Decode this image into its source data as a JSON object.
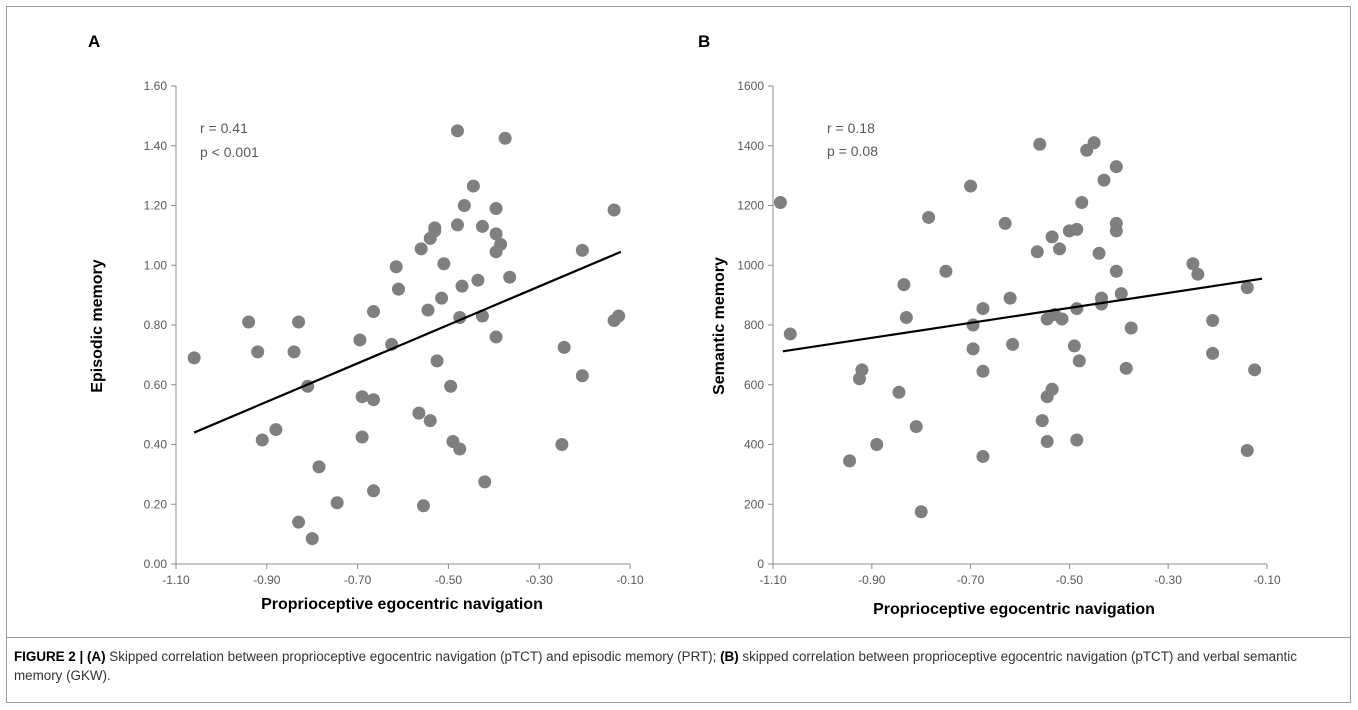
{
  "chart_data": [
    {
      "type": "scatter",
      "panel_label": "A",
      "xlabel": "Proprioceptive egocentric navigation",
      "ylabel": "Episodic memory",
      "xlim": [
        -1.1,
        -0.1
      ],
      "ylim": [
        0.0,
        1.6
      ],
      "xticks": [
        "-1.10",
        "-0.90",
        "-0.70",
        "-0.50",
        "-0.30",
        "-0.10"
      ],
      "yticks": [
        "0.00",
        "0.20",
        "0.40",
        "0.60",
        "0.80",
        "1.00",
        "1.20",
        "1.40",
        "1.60"
      ],
      "grid": false,
      "annotation_r": "r = 0.41",
      "annotation_p": "p < 0.001",
      "regression_line": {
        "x": [
          -1.06,
          -0.12
        ],
        "y": [
          0.44,
          1.045
        ]
      },
      "points": [
        {
          "x": -1.06,
          "y": 0.69
        },
        {
          "x": -0.94,
          "y": 0.81
        },
        {
          "x": -0.92,
          "y": 0.71
        },
        {
          "x": -0.91,
          "y": 0.415
        },
        {
          "x": -0.88,
          "y": 0.45
        },
        {
          "x": -0.84,
          "y": 0.71
        },
        {
          "x": -0.83,
          "y": 0.81
        },
        {
          "x": -0.81,
          "y": 0.595
        },
        {
          "x": -0.83,
          "y": 0.14
        },
        {
          "x": -0.8,
          "y": 0.085
        },
        {
          "x": -0.785,
          "y": 0.325
        },
        {
          "x": -0.745,
          "y": 0.205
        },
        {
          "x": -0.695,
          "y": 0.75
        },
        {
          "x": -0.69,
          "y": 0.56
        },
        {
          "x": -0.69,
          "y": 0.425
        },
        {
          "x": -0.665,
          "y": 0.845
        },
        {
          "x": -0.665,
          "y": 0.55
        },
        {
          "x": -0.665,
          "y": 0.245
        },
        {
          "x": -0.625,
          "y": 0.735
        },
        {
          "x": -0.615,
          "y": 0.995
        },
        {
          "x": -0.61,
          "y": 0.92
        },
        {
          "x": -0.565,
          "y": 0.505
        },
        {
          "x": -0.56,
          "y": 1.055
        },
        {
          "x": -0.555,
          "y": 0.195
        },
        {
          "x": -0.545,
          "y": 0.85
        },
        {
          "x": -0.54,
          "y": 1.09
        },
        {
          "x": -0.54,
          "y": 0.48
        },
        {
          "x": -0.53,
          "y": 1.125
        },
        {
          "x": -0.53,
          "y": 1.115
        },
        {
          "x": -0.525,
          "y": 0.68
        },
        {
          "x": -0.515,
          "y": 0.89
        },
        {
          "x": -0.51,
          "y": 1.005
        },
        {
          "x": -0.495,
          "y": 0.595
        },
        {
          "x": -0.49,
          "y": 0.41
        },
        {
          "x": -0.48,
          "y": 1.45
        },
        {
          "x": -0.48,
          "y": 1.135
        },
        {
          "x": -0.475,
          "y": 0.825
        },
        {
          "x": -0.475,
          "y": 0.385
        },
        {
          "x": -0.47,
          "y": 0.93
        },
        {
          "x": -0.465,
          "y": 1.2
        },
        {
          "x": -0.445,
          "y": 1.265
        },
        {
          "x": -0.435,
          "y": 0.95
        },
        {
          "x": -0.425,
          "y": 1.13
        },
        {
          "x": -0.425,
          "y": 0.83
        },
        {
          "x": -0.42,
          "y": 0.275
        },
        {
          "x": -0.395,
          "y": 1.19
        },
        {
          "x": -0.395,
          "y": 1.105
        },
        {
          "x": -0.395,
          "y": 1.045
        },
        {
          "x": -0.395,
          "y": 0.76
        },
        {
          "x": -0.385,
          "y": 1.07
        },
        {
          "x": -0.375,
          "y": 1.425
        },
        {
          "x": -0.365,
          "y": 0.96
        },
        {
          "x": -0.25,
          "y": 0.4
        },
        {
          "x": -0.245,
          "y": 0.725
        },
        {
          "x": -0.205,
          "y": 1.05
        },
        {
          "x": -0.205,
          "y": 0.63
        },
        {
          "x": -0.135,
          "y": 1.185
        },
        {
          "x": -0.135,
          "y": 0.815
        },
        {
          "x": -0.125,
          "y": 0.83
        }
      ]
    },
    {
      "type": "scatter",
      "panel_label": "B",
      "xlabel": "Proprioceptive  egocentric navigation",
      "ylabel": "Semantic memory",
      "xlim": [
        -1.1,
        -0.1
      ],
      "ylim": [
        0,
        1600
      ],
      "xticks": [
        "-1.10",
        "-0.90",
        "-0.70",
        "-0.50",
        "-0.30",
        "-0.10"
      ],
      "yticks": [
        "0",
        "200",
        "400",
        "600",
        "800",
        "1000",
        "1200",
        "1400",
        "1600"
      ],
      "grid": false,
      "annotation_r": "r = 0.18",
      "annotation_p": "p = 0.08",
      "regression_line": {
        "x": [
          -1.08,
          -0.11
        ],
        "y": [
          712,
          955
        ]
      },
      "points": [
        {
          "x": -1.085,
          "y": 1210
        },
        {
          "x": -1.065,
          "y": 770
        },
        {
          "x": -0.945,
          "y": 345
        },
        {
          "x": -0.925,
          "y": 620
        },
        {
          "x": -0.92,
          "y": 650
        },
        {
          "x": -0.89,
          "y": 400
        },
        {
          "x": -0.845,
          "y": 575
        },
        {
          "x": -0.835,
          "y": 935
        },
        {
          "x": -0.83,
          "y": 825
        },
        {
          "x": -0.81,
          "y": 460
        },
        {
          "x": -0.8,
          "y": 175
        },
        {
          "x": -0.785,
          "y": 1160
        },
        {
          "x": -0.75,
          "y": 980
        },
        {
          "x": -0.7,
          "y": 1265
        },
        {
          "x": -0.695,
          "y": 800
        },
        {
          "x": -0.695,
          "y": 720
        },
        {
          "x": -0.675,
          "y": 855
        },
        {
          "x": -0.675,
          "y": 645
        },
        {
          "x": -0.675,
          "y": 360
        },
        {
          "x": -0.63,
          "y": 1140
        },
        {
          "x": -0.62,
          "y": 890
        },
        {
          "x": -0.615,
          "y": 735
        },
        {
          "x": -0.565,
          "y": 1045
        },
        {
          "x": -0.56,
          "y": 1405
        },
        {
          "x": -0.555,
          "y": 480
        },
        {
          "x": -0.545,
          "y": 820
        },
        {
          "x": -0.545,
          "y": 560
        },
        {
          "x": -0.545,
          "y": 410
        },
        {
          "x": -0.535,
          "y": 1095
        },
        {
          "x": -0.535,
          "y": 585
        },
        {
          "x": -0.53,
          "y": 835
        },
        {
          "x": -0.52,
          "y": 1055
        },
        {
          "x": -0.515,
          "y": 820
        },
        {
          "x": -0.5,
          "y": 1115
        },
        {
          "x": -0.49,
          "y": 730
        },
        {
          "x": -0.485,
          "y": 1120
        },
        {
          "x": -0.485,
          "y": 855
        },
        {
          "x": -0.485,
          "y": 415
        },
        {
          "x": -0.48,
          "y": 680
        },
        {
          "x": -0.475,
          "y": 1210
        },
        {
          "x": -0.465,
          "y": 1385
        },
        {
          "x": -0.45,
          "y": 1410
        },
        {
          "x": -0.44,
          "y": 1040
        },
        {
          "x": -0.435,
          "y": 890
        },
        {
          "x": -0.435,
          "y": 870
        },
        {
          "x": -0.43,
          "y": 1285
        },
        {
          "x": -0.405,
          "y": 1330
        },
        {
          "x": -0.405,
          "y": 1140
        },
        {
          "x": -0.405,
          "y": 1115
        },
        {
          "x": -0.405,
          "y": 980
        },
        {
          "x": -0.395,
          "y": 905
        },
        {
          "x": -0.385,
          "y": 655
        },
        {
          "x": -0.375,
          "y": 790
        },
        {
          "x": -0.25,
          "y": 1005
        },
        {
          "x": -0.24,
          "y": 970
        },
        {
          "x": -0.21,
          "y": 815
        },
        {
          "x": -0.21,
          "y": 705
        },
        {
          "x": -0.14,
          "y": 925
        },
        {
          "x": -0.14,
          "y": 380
        },
        {
          "x": -0.125,
          "y": 650
        }
      ]
    }
  ],
  "caption": {
    "figure_label": "FIGURE 2 | ",
    "part_a_label": "(A)",
    "part_a_text": " Skipped correlation between proprioceptive egocentric navigation (pTCT) and episodic memory (PRT); ",
    "part_b_label": "(B)",
    "part_b_text": " skipped correlation between proprioceptive egocentric navigation (pTCT) and verbal semantic memory (GKW)."
  },
  "colors": {
    "point_fill": "#7f7f7f",
    "line": "#000000",
    "axis": "#8c8c8c",
    "tick_text": "#595959",
    "frame": "#9a9a9a"
  }
}
